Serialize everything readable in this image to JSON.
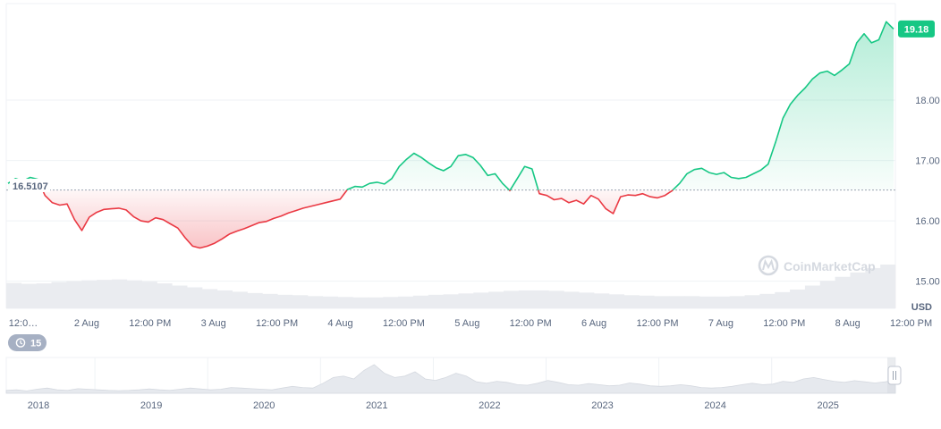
{
  "chart_data": {
    "type": "area",
    "currency": "USD",
    "baseline": 16.5107,
    "baseline_label": "16.5107",
    "current_value": 19.18,
    "current_label": "19.18",
    "y_ticks": [
      "15.00",
      "16.00",
      "17.00",
      "18.00"
    ],
    "ylim": [
      14.55,
      19.6
    ],
    "x_tick_labels": [
      "12:0…",
      "2 Aug",
      "12:00 PM",
      "3 Aug",
      "12:00 PM",
      "4 Aug",
      "12:00 PM",
      "5 Aug",
      "12:00 PM",
      "6 Aug",
      "12:00 PM",
      "7 Aug",
      "12:00 PM",
      "8 Aug",
      "12:00 PM"
    ],
    "x_start": "1 Aug 12:00 PM",
    "x_end": "8 Aug 7:00 PM",
    "series": [
      {
        "values": [
          16.62,
          16.7,
          16.66,
          16.72,
          16.69,
          16.42,
          16.3,
          16.26,
          16.28,
          16.02,
          15.84,
          16.06,
          16.14,
          16.19,
          16.2,
          16.21,
          16.18,
          16.07,
          16.0,
          15.98,
          16.05,
          16.02,
          15.95,
          15.88,
          15.72,
          15.58,
          15.55,
          15.58,
          15.63,
          15.7,
          15.78,
          15.83,
          15.87,
          15.92,
          15.97,
          15.99,
          16.04,
          16.08,
          16.13,
          16.17,
          16.21,
          16.24,
          16.27,
          16.3,
          16.33,
          16.36,
          16.52,
          16.57,
          16.56,
          16.62,
          16.64,
          16.61,
          16.7,
          16.9,
          17.02,
          17.12,
          17.05,
          16.96,
          16.88,
          16.83,
          16.9,
          17.08,
          17.1,
          17.05,
          16.92,
          16.75,
          16.78,
          16.62,
          16.5,
          16.7,
          16.9,
          16.86,
          16.45,
          16.42,
          16.35,
          16.37,
          16.3,
          16.34,
          16.28,
          16.42,
          16.36,
          16.2,
          16.12,
          16.4,
          16.43,
          16.42,
          16.45,
          16.4,
          16.38,
          16.42,
          16.5,
          16.62,
          16.78,
          16.85,
          16.87,
          16.8,
          16.77,
          16.8,
          16.72,
          16.7,
          16.72,
          16.78,
          16.84,
          16.94,
          17.3,
          17.7,
          17.93,
          18.08,
          18.2,
          18.35,
          18.45,
          18.48,
          18.41,
          18.5,
          18.6,
          18.95,
          19.1,
          18.95,
          19.0,
          19.3,
          19.18
        ]
      }
    ],
    "volume": [
      0.58,
      0.56,
      0.57,
      0.6,
      0.62,
      0.64,
      0.65,
      0.66,
      0.64,
      0.61,
      0.57,
      0.52,
      0.48,
      0.44,
      0.41,
      0.38,
      0.35,
      0.33,
      0.31,
      0.3,
      0.28,
      0.27,
      0.26,
      0.25,
      0.25,
      0.26,
      0.27,
      0.29,
      0.31,
      0.32,
      0.34,
      0.36,
      0.38,
      0.4,
      0.41,
      0.41,
      0.4,
      0.38,
      0.36,
      0.34,
      0.32,
      0.3,
      0.29,
      0.28,
      0.28,
      0.28,
      0.27,
      0.27,
      0.28,
      0.3,
      0.33,
      0.37,
      0.43,
      0.52,
      0.63,
      0.72,
      0.82,
      0.92,
      1.0
    ],
    "navigator": {
      "years": [
        "2018",
        "2019",
        "2020",
        "2021",
        "2022",
        "2023",
        "2024",
        "2025"
      ],
      "values": [
        0.1,
        0.12,
        0.08,
        0.14,
        0.18,
        0.12,
        0.1,
        0.16,
        0.14,
        0.12,
        0.1,
        0.09,
        0.1,
        0.12,
        0.15,
        0.12,
        0.1,
        0.14,
        0.18,
        0.15,
        0.12,
        0.14,
        0.2,
        0.18,
        0.16,
        0.14,
        0.12,
        0.18,
        0.24,
        0.2,
        0.18,
        0.35,
        0.55,
        0.6,
        0.5,
        0.8,
        1.0,
        0.7,
        0.55,
        0.6,
        0.75,
        0.5,
        0.45,
        0.55,
        0.7,
        0.6,
        0.4,
        0.35,
        0.42,
        0.38,
        0.3,
        0.28,
        0.35,
        0.45,
        0.38,
        0.3,
        0.28,
        0.34,
        0.3,
        0.26,
        0.28,
        0.36,
        0.32,
        0.26,
        0.24,
        0.26,
        0.3,
        0.26,
        0.2,
        0.18,
        0.2,
        0.24,
        0.3,
        0.35,
        0.3,
        0.32,
        0.42,
        0.38,
        0.5,
        0.55,
        0.48,
        0.42,
        0.38,
        0.44,
        0.4,
        0.36,
        0.4,
        0.46
      ]
    }
  },
  "ui": {
    "watermark": "CoinMarketCap",
    "history_badge": "15",
    "colors": {
      "up": "#16c784",
      "down": "#ea3943",
      "grid": "#eff2f5",
      "axis_text": "#58667e"
    }
  }
}
